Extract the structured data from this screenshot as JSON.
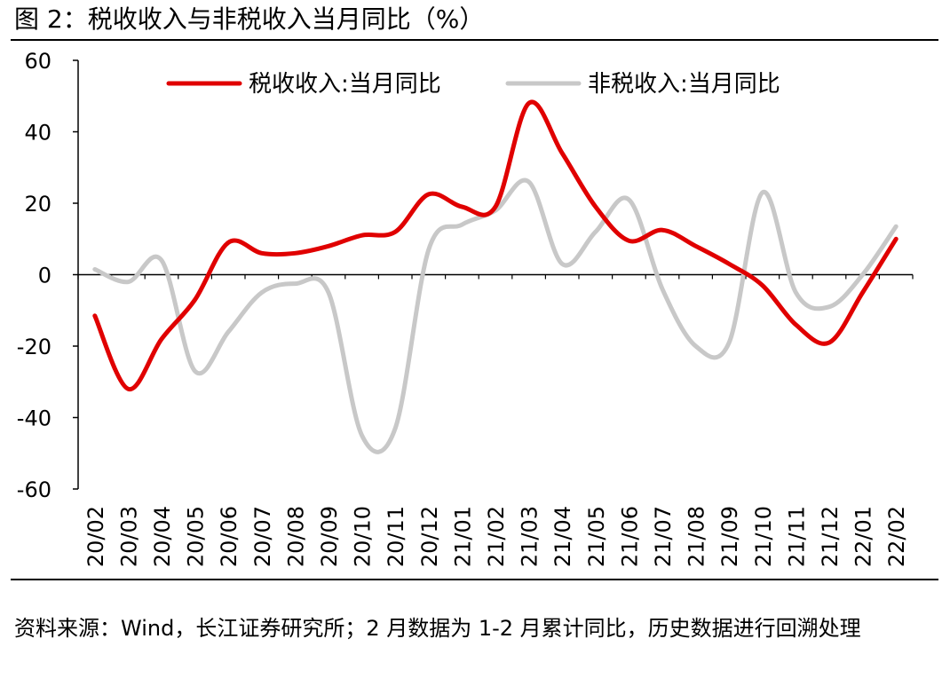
{
  "title": "图 2：税收收入与非税收入当月同比（%）",
  "source": "资料来源：Wind，长江证券研究所；2 月数据为 1-2 月累计同比，历史数据进行回溯处理",
  "chart_data": {
    "type": "line",
    "categories": [
      "20/02",
      "20/03",
      "20/04",
      "20/05",
      "20/06",
      "20/07",
      "20/08",
      "20/09",
      "20/10",
      "20/11",
      "20/12",
      "21/01",
      "21/02",
      "21/03",
      "21/04",
      "21/05",
      "21/06",
      "21/07",
      "21/08",
      "21/09",
      "21/10",
      "21/11",
      "21/12",
      "22/01",
      "22/02"
    ],
    "ylim": [
      -60,
      60
    ],
    "yticks": [
      60,
      40,
      20,
      0,
      -20,
      -40,
      -60
    ],
    "legend_position": "top",
    "series": [
      {
        "name": "税收收入:当月同比",
        "color": "#e00000",
        "values": [
          -11.5,
          -32,
          -18,
          -7,
          9,
          6,
          6,
          8,
          11,
          12,
          22.5,
          19,
          19,
          48,
          34,
          19,
          9.5,
          12.5,
          8,
          3,
          -3,
          -14,
          -19,
          -5,
          10
        ]
      },
      {
        "name": "非税收入:当月同比",
        "color": "#c8c8c8",
        "values": [
          1.5,
          -2,
          4,
          -27,
          -16,
          -5,
          -2.5,
          -5,
          -45,
          -43,
          7,
          14,
          18,
          26,
          3,
          12,
          21,
          -4,
          -20,
          -19,
          23,
          -5,
          -9,
          0,
          13.5
        ]
      }
    ]
  }
}
